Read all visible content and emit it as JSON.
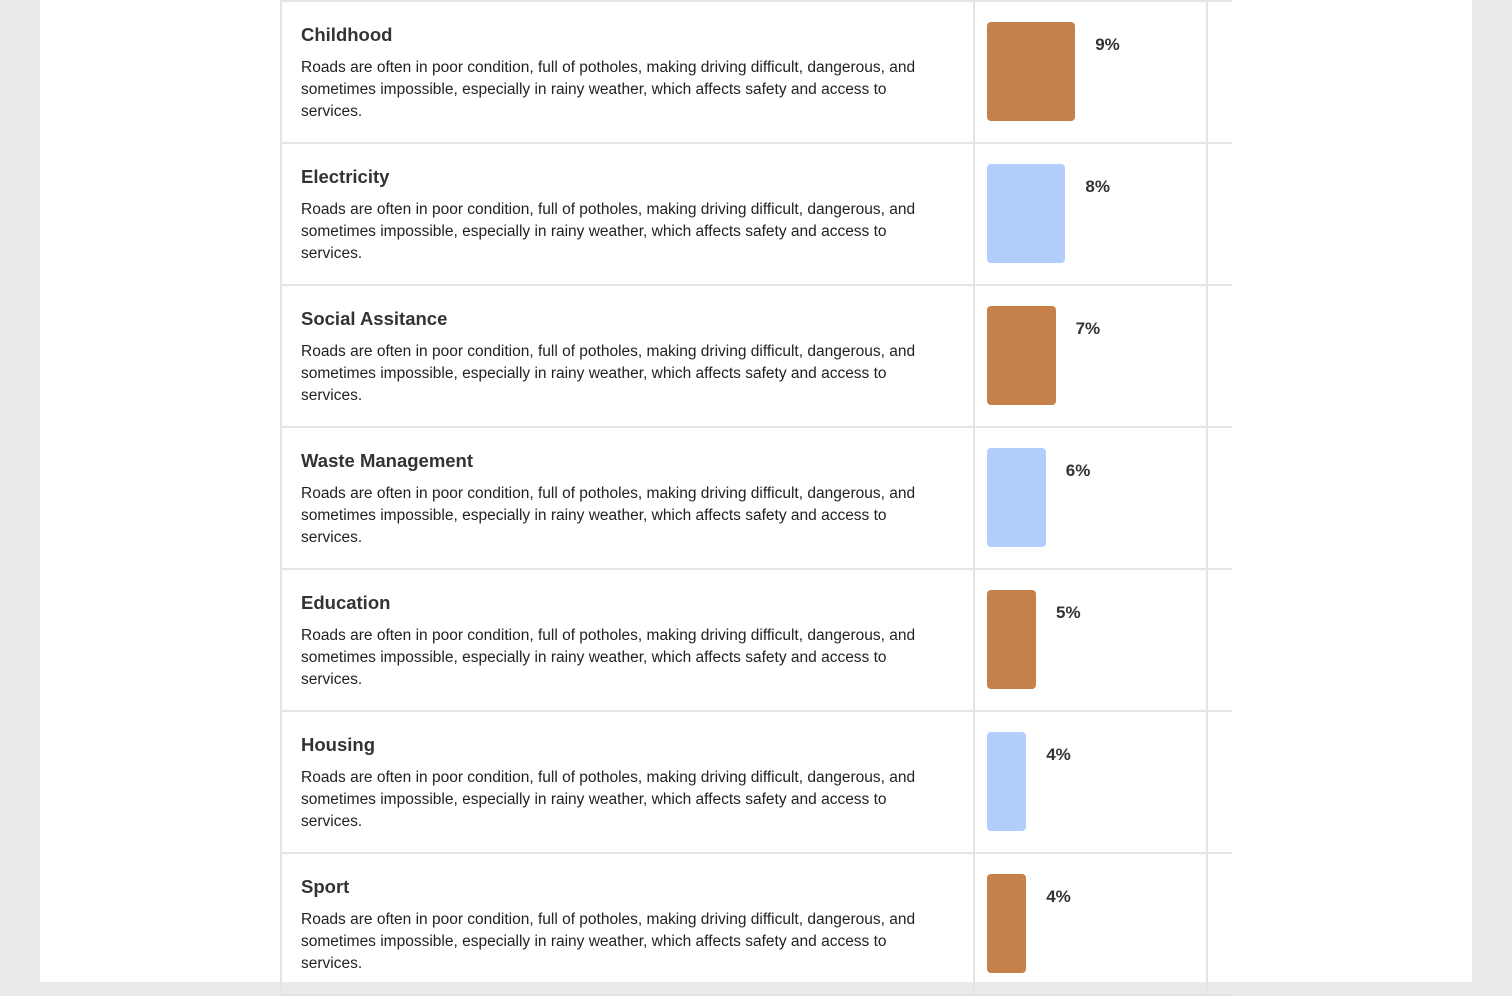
{
  "colors": {
    "bar_odd": "#c58149",
    "bar_even": "#b3cdfd",
    "background": "#ebeae8",
    "border": "#e2e4e8"
  },
  "rows": [
    {
      "title": "Childhood",
      "description": "Roads are often in poor condition, full of potholes, making driving difficult, dangerous, and sometimes impossible, especially in rainy weather, which affects safety and access to services.",
      "percent_label": "9%",
      "percent": 9
    },
    {
      "title": "Electricity",
      "description": "Roads are often in poor condition, full of potholes, making driving difficult, dangerous, and sometimes impossible, especially in rainy weather, which affects safety and access to services.",
      "percent_label": "8%",
      "percent": 8
    },
    {
      "title": "Social Assitance",
      "description": "Roads are often in poor condition, full of potholes, making driving difficult, dangerous, and sometimes impossible, especially in rainy weather, which affects safety and access to services.",
      "percent_label": "7%",
      "percent": 7
    },
    {
      "title": "Waste Management",
      "description": "Roads are often in poor condition, full of potholes, making driving difficult, dangerous, and sometimes impossible, especially in rainy weather, which affects safety and access to services.",
      "percent_label": "6%",
      "percent": 6
    },
    {
      "title": "Education",
      "description": "Roads are often in poor condition, full of potholes, making driving difficult, dangerous, and sometimes impossible, especially in rainy weather, which affects safety and access to services.",
      "percent_label": "5%",
      "percent": 5
    },
    {
      "title": "Housing",
      "description": "Roads are often in poor condition, full of potholes, making driving difficult, dangerous, and sometimes impossible, especially in rainy weather, which affects safety and access to services.",
      "percent_label": "4%",
      "percent": 4
    },
    {
      "title": "Sport",
      "description": "Roads are often in poor condition, full of potholes, making driving difficult, dangerous, and sometimes impossible, especially in rainy weather, which affects safety and access to services.",
      "percent_label": "4%",
      "percent": 4
    }
  ]
}
